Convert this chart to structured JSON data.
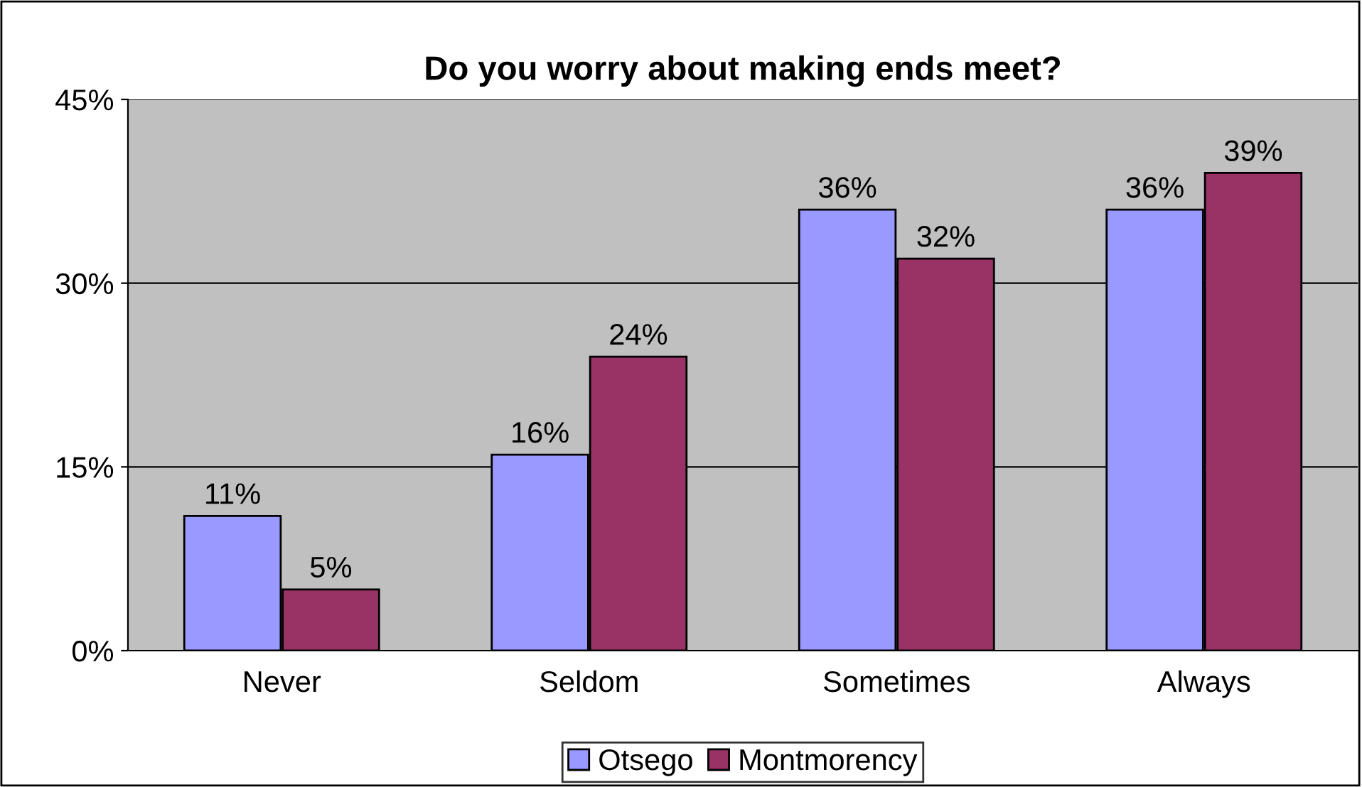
{
  "chart_data": {
    "type": "bar",
    "title": "Do you worry about making ends meet?",
    "categories": [
      "Never",
      "Seldom",
      "Sometimes",
      "Always"
    ],
    "series": [
      {
        "name": "Otsego",
        "color": "#9999ff",
        "values": [
          11,
          16,
          36,
          36
        ],
        "value_labels": [
          "11%",
          "16%",
          "36%",
          "36%"
        ]
      },
      {
        "name": "Montmorency",
        "color": "#993366",
        "values": [
          5,
          24,
          32,
          39
        ],
        "value_labels": [
          "5%",
          "24%",
          "32%",
          "39%"
        ]
      }
    ],
    "ylim": [
      0,
      45
    ],
    "yticks": [
      {
        "value": 0,
        "label": "0%"
      },
      {
        "value": 15,
        "label": "15%"
      },
      {
        "value": 30,
        "label": "30%"
      },
      {
        "value": 45,
        "label": "45%"
      }
    ],
    "grid": "y",
    "legend": "bottom"
  }
}
